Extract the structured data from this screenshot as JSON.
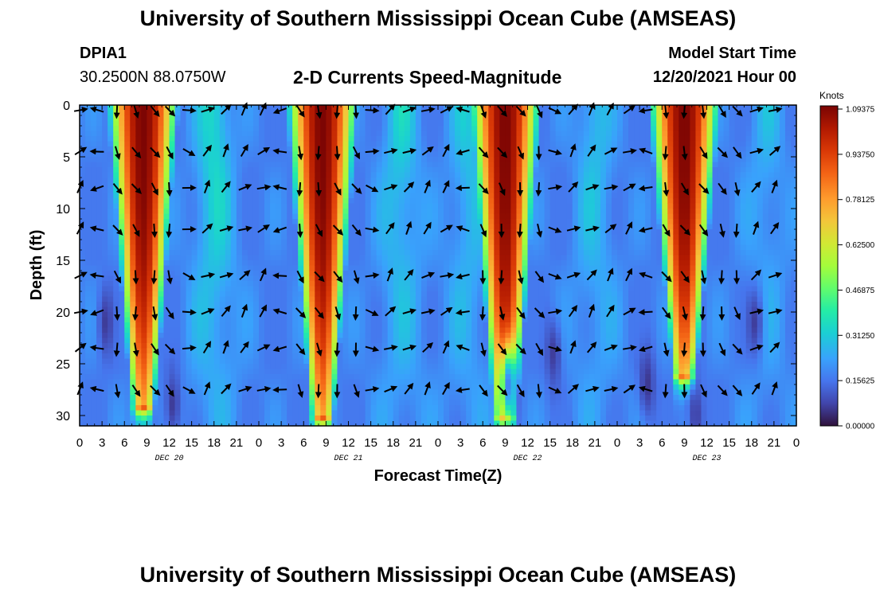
{
  "header": {
    "title": "University of Southern Mississippi Ocean Cube (AMSEAS)",
    "station": "DPIA1",
    "coords": "30.2500N  88.0750W",
    "subtitle": "2-D Currents Speed-Magnitude",
    "model_start_label": "Model Start Time",
    "model_start_value": "12/20/2021 Hour 00"
  },
  "footer": {
    "title": "University of Southern Mississippi Ocean Cube (AMSEAS)"
  },
  "chart_data": {
    "type": "heatmap",
    "xlabel": "Forecast Time(Z)",
    "ylabel": "Depth (ft)",
    "x_range_hours": [
      0,
      96
    ],
    "y_range_ft": [
      0,
      31
    ],
    "x_ticks": [
      "0",
      "3",
      "6",
      "9",
      "12",
      "15",
      "18",
      "21",
      "0",
      "3",
      "6",
      "9",
      "12",
      "15",
      "18",
      "21",
      "0",
      "3",
      "6",
      "9",
      "12",
      "15",
      "18",
      "21",
      "0",
      "3",
      "6",
      "9",
      "12",
      "15",
      "18",
      "21",
      "0"
    ],
    "x_tick_hours": [
      0,
      3,
      6,
      9,
      12,
      15,
      18,
      21,
      24,
      27,
      30,
      33,
      36,
      39,
      42,
      45,
      48,
      51,
      54,
      57,
      60,
      63,
      66,
      69,
      72,
      75,
      78,
      81,
      84,
      87,
      90,
      93,
      96
    ],
    "date_labels": [
      {
        "label": "DEC 20",
        "hour": 12
      },
      {
        "label": "DEC 21",
        "hour": 36
      },
      {
        "label": "DEC 22",
        "hour": 60
      },
      {
        "label": "DEC 23",
        "hour": 84
      }
    ],
    "y_ticks": [
      0,
      5,
      10,
      15,
      20,
      25,
      30
    ],
    "colorbar": {
      "unit": "Knots",
      "min": 0.0,
      "max": 1.09375,
      "tick_values": [
        1.09375,
        0.9375,
        0.78125,
        0.625,
        0.46875,
        0.3125,
        0.15625,
        0.0
      ],
      "tick_labels": [
        "1.09375",
        "0.93750",
        "0.78125",
        "0.62500",
        "0.46875",
        "0.31250",
        "0.15625",
        "0.00000"
      ]
    },
    "high_speed_lobes": [
      {
        "center_hour": 8.5,
        "surface_half_width_hours": 4.5,
        "max_depth_ft": 29,
        "peak_knots": 1.09
      },
      {
        "center_hour": 32.5,
        "surface_half_width_hours": 4.5,
        "max_depth_ft": 30,
        "peak_knots": 1.09
      },
      {
        "center_hour": 57.0,
        "surface_half_width_hours": 4.5,
        "max_depth_ft": 30,
        "peak_knots": 1.09
      },
      {
        "center_hour": 81.0,
        "surface_half_width_hours": 4.5,
        "max_depth_ft": 26,
        "peak_knots": 1.09
      }
    ],
    "vector_rows_depth_ft": [
      0.5,
      4.5,
      8,
      12,
      16.5,
      20,
      23.5,
      27.5
    ],
    "vector_columns_hours": [
      0,
      2.5,
      5,
      7.5,
      10,
      12,
      14.5,
      17,
      19.5,
      22,
      24.5,
      27,
      29.5,
      32,
      34.5,
      37,
      39,
      41.5,
      44,
      46.5,
      49,
      51.5,
      54,
      56.5,
      59,
      61.5,
      63.5,
      66,
      68.5,
      71,
      73.5,
      76,
      78.5,
      81,
      83.5,
      86,
      88,
      90.5,
      93
    ]
  }
}
